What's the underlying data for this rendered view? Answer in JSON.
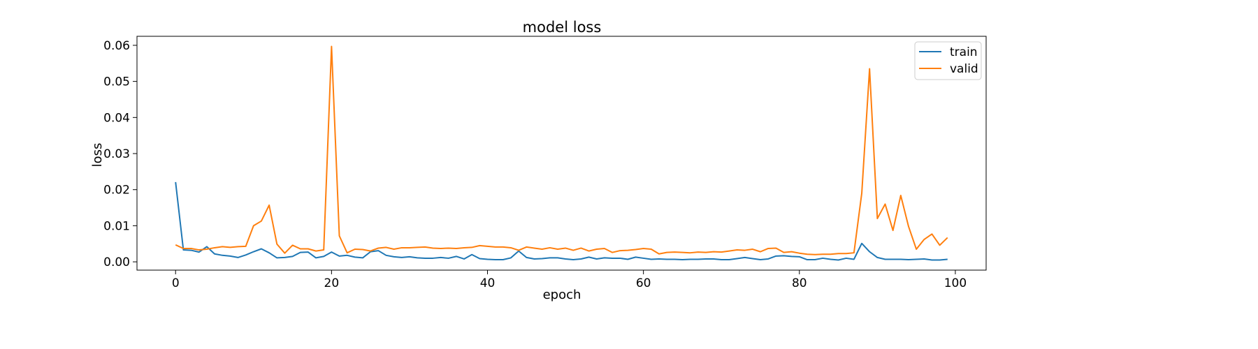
{
  "chart_data": {
    "type": "line",
    "title": "model loss",
    "xlabel": "epoch",
    "ylabel": "loss",
    "xlim": [
      -4.95,
      103.95
    ],
    "ylim": [
      -0.0023,
      0.0625
    ],
    "xticks": [
      0,
      20,
      40,
      60,
      80,
      100
    ],
    "xtick_labels": [
      "0",
      "20",
      "40",
      "60",
      "80",
      "100"
    ],
    "yticks": [
      0.0,
      0.01,
      0.02,
      0.03,
      0.04,
      0.05,
      0.06
    ],
    "ytick_labels": [
      "0.00",
      "0.01",
      "0.02",
      "0.03",
      "0.04",
      "0.05",
      "0.06"
    ],
    "grid": false,
    "legend_position": "top-right",
    "colors": {
      "train": "#1f77b4",
      "valid": "#ff7f0e"
    },
    "x": [
      0,
      1,
      2,
      3,
      4,
      5,
      6,
      7,
      8,
      9,
      10,
      11,
      12,
      13,
      14,
      15,
      16,
      17,
      18,
      19,
      20,
      21,
      22,
      23,
      24,
      25,
      26,
      27,
      28,
      29,
      30,
      31,
      32,
      33,
      34,
      35,
      36,
      37,
      38,
      39,
      40,
      41,
      42,
      43,
      44,
      45,
      46,
      47,
      48,
      49,
      50,
      51,
      52,
      53,
      54,
      55,
      56,
      57,
      58,
      59,
      60,
      61,
      62,
      63,
      64,
      65,
      66,
      67,
      68,
      69,
      70,
      71,
      72,
      73,
      74,
      75,
      76,
      77,
      78,
      79,
      80,
      81,
      82,
      83,
      84,
      85,
      86,
      87,
      88,
      89,
      90,
      91,
      92,
      93,
      94,
      95,
      96,
      97,
      98,
      99
    ],
    "series": [
      {
        "name": "train",
        "values": [
          0.0221,
          0.0033,
          0.0032,
          0.0027,
          0.0042,
          0.0022,
          0.0018,
          0.0016,
          0.0012,
          0.0019,
          0.0028,
          0.0036,
          0.0025,
          0.0011,
          0.0012,
          0.0015,
          0.0026,
          0.0027,
          0.0011,
          0.0015,
          0.0027,
          0.0016,
          0.0018,
          0.0013,
          0.0011,
          0.0028,
          0.0031,
          0.0018,
          0.0014,
          0.0012,
          0.0014,
          0.0011,
          0.001,
          0.001,
          0.0012,
          0.001,
          0.0015,
          0.0008,
          0.002,
          0.0009,
          0.0007,
          0.0006,
          0.0006,
          0.0011,
          0.003,
          0.0012,
          0.0008,
          0.0009,
          0.0011,
          0.0011,
          0.0008,
          0.0006,
          0.0008,
          0.0013,
          0.0008,
          0.0011,
          0.001,
          0.001,
          0.0007,
          0.0013,
          0.001,
          0.0007,
          0.0008,
          0.0007,
          0.0007,
          0.0006,
          0.0007,
          0.0007,
          0.0008,
          0.0008,
          0.0006,
          0.0006,
          0.0009,
          0.0012,
          0.0009,
          0.0006,
          0.0008,
          0.0016,
          0.0017,
          0.0015,
          0.0014,
          0.0006,
          0.0006,
          0.001,
          0.0007,
          0.0005,
          0.001,
          0.0007,
          0.0051,
          0.0028,
          0.0012,
          0.0007,
          0.0007,
          0.0007,
          0.0006,
          0.0007,
          0.0008,
          0.0005,
          0.0005,
          0.0007
        ]
      },
      {
        "name": "valid",
        "values": [
          0.0047,
          0.0037,
          0.0037,
          0.0033,
          0.0035,
          0.0039,
          0.0042,
          0.004,
          0.0042,
          0.0043,
          0.01,
          0.0113,
          0.0157,
          0.0049,
          0.0024,
          0.0046,
          0.0036,
          0.0036,
          0.003,
          0.0033,
          0.0597,
          0.0072,
          0.0025,
          0.0035,
          0.0034,
          0.003,
          0.0038,
          0.004,
          0.0035,
          0.0039,
          0.0039,
          0.004,
          0.0041,
          0.0038,
          0.0037,
          0.0038,
          0.0037,
          0.0039,
          0.004,
          0.0045,
          0.0043,
          0.0041,
          0.0041,
          0.0039,
          0.0032,
          0.0041,
          0.0038,
          0.0035,
          0.0039,
          0.0035,
          0.0038,
          0.0032,
          0.0038,
          0.003,
          0.0035,
          0.0037,
          0.0026,
          0.0031,
          0.0032,
          0.0034,
          0.0037,
          0.0035,
          0.0022,
          0.0026,
          0.0027,
          0.0026,
          0.0025,
          0.0027,
          0.0026,
          0.0028,
          0.0027,
          0.003,
          0.0033,
          0.0032,
          0.0035,
          0.0028,
          0.0037,
          0.0038,
          0.0026,
          0.0028,
          0.0024,
          0.0021,
          0.002,
          0.0021,
          0.0021,
          0.0023,
          0.0023,
          0.0025,
          0.019,
          0.0535,
          0.012,
          0.016,
          0.0087,
          0.0184,
          0.0098,
          0.0035,
          0.0062,
          0.0077,
          0.0046,
          0.0067
        ]
      }
    ]
  }
}
